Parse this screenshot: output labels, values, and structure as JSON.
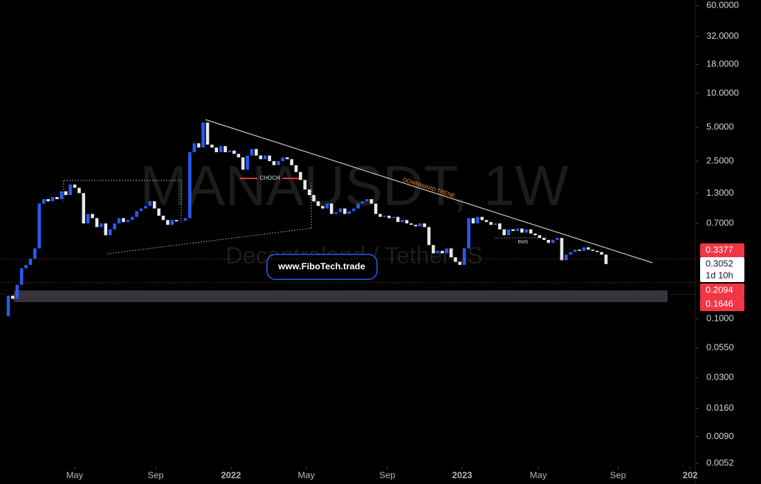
{
  "chart_data": {
    "type": "candlestick",
    "title": "MANAUSDT, 1W",
    "subtitle": "Decentraland / TetherUS",
    "watermark_link": "www.FiboTech.trade",
    "annotations": {
      "choch": "CHOCH",
      "bms": "BMS",
      "trend": "DOWNWARD TRENE"
    },
    "up_color": "#2a5bf0",
    "down_color": "#e8e8e8",
    "log_scale": true,
    "xlim": [
      -1.875,
      155.16
    ],
    "xticks": [
      {
        "value": 15,
        "label": "May"
      },
      {
        "value": 33.3,
        "label": "Sep"
      },
      {
        "value": 50.3,
        "label": "2022"
      },
      {
        "value": 67.3,
        "label": "May"
      },
      {
        "value": 85.6,
        "label": "Sep"
      },
      {
        "value": 102.5,
        "label": "2023"
      },
      {
        "value": 119.7,
        "label": "May"
      },
      {
        "value": 137.7,
        "label": "Sep"
      },
      {
        "value": 154,
        "label": "202"
      }
    ],
    "ylim": [
      0.00486,
      67.2
    ],
    "yticks": [
      {
        "value": 60,
        "label": "60.0000"
      },
      {
        "value": 32,
        "label": "32.0000"
      },
      {
        "value": 18,
        "label": "18.0000"
      },
      {
        "value": 10,
        "label": "10.0000"
      },
      {
        "value": 5,
        "label": "5.0000"
      },
      {
        "value": 2.5,
        "label": "2.5000"
      },
      {
        "value": 1.3,
        "label": "1.3000"
      },
      {
        "value": 0.7,
        "label": "0.7000"
      },
      {
        "value": 0.1,
        "label": "0.1000"
      },
      {
        "value": 0.055,
        "label": "0.0550"
      },
      {
        "value": 0.03,
        "label": "0.0300"
      },
      {
        "value": 0.016,
        "label": "0.0160"
      },
      {
        "value": 0.009,
        "label": "0.0090"
      },
      {
        "value": 0.0052,
        "label": "0.0052"
      }
    ],
    "price_tags": [
      {
        "price": 0.3377,
        "color": "#f23645",
        "text_color": "#ffffff",
        "dotted_line": true
      },
      {
        "price": 0.3052,
        "color": "#ffffff",
        "text_color": "#131722",
        "dotted_line": false,
        "countdown": "1d 10h"
      },
      {
        "price": 0.2094,
        "color": "#f23645",
        "text_color": "#ffffff",
        "dotted_line": true
      },
      {
        "price": 0.1646,
        "color": "#f23645",
        "text_color": "#ffffff",
        "dotted_line": true
      }
    ],
    "open": [
      0.105,
      0.16,
      0.15,
      0.2,
      0.28,
      0.3,
      0.34,
      0.42,
      1.05,
      1.15,
      1.1,
      1.2,
      1.15,
      1.35,
      1.25,
      1.55,
      1.45,
      1.3,
      0.7,
      0.85,
      0.78,
      0.65,
      0.7,
      0.55,
      0.62,
      0.7,
      0.78,
      0.72,
      0.75,
      0.8,
      0.9,
      0.95,
      1.0,
      1.1,
      0.95,
      0.82,
      0.75,
      0.68,
      0.75,
      0.73,
      0.74,
      0.78,
      3.0,
      3.6,
      3.3,
      5.5,
      3.5,
      3.3,
      3.0,
      3.4,
      3.0,
      3.1,
      2.9,
      2.7,
      2.1,
      2.8,
      3.2,
      2.8,
      2.6,
      2.8,
      2.5,
      2.3,
      2.5,
      2.7,
      2.6,
      2.3,
      2.0,
      1.7,
      1.4,
      1.25,
      1.1,
      1.0,
      0.95,
      1.05,
      0.85,
      0.88,
      0.95,
      0.85,
      0.9,
      0.95,
      1.05,
      1.1,
      1.15,
      1.05,
      0.85,
      0.8,
      0.82,
      0.78,
      0.8,
      0.72,
      0.75,
      0.7,
      0.68,
      0.66,
      0.7,
      0.65,
      0.45,
      0.38,
      0.4,
      0.38,
      0.42,
      0.35,
      0.32,
      0.3,
      0.42,
      0.78,
      0.7,
      0.8,
      0.75,
      0.72,
      0.68,
      0.7,
      0.62,
      0.55,
      0.62,
      0.6,
      0.63,
      0.58,
      0.62,
      0.57,
      0.55,
      0.52,
      0.5,
      0.47,
      0.5,
      0.52,
      0.33,
      0.37,
      0.39,
      0.41,
      0.4,
      0.43,
      0.41,
      0.4,
      0.39,
      0.37
    ],
    "close": [
      0.16,
      0.15,
      0.2,
      0.28,
      0.3,
      0.34,
      0.42,
      1.05,
      1.15,
      1.1,
      1.2,
      1.15,
      1.35,
      1.25,
      1.55,
      1.45,
      1.3,
      0.7,
      0.85,
      0.78,
      0.65,
      0.7,
      0.55,
      0.62,
      0.7,
      0.78,
      0.72,
      0.75,
      0.8,
      0.9,
      0.95,
      1.0,
      1.1,
      0.95,
      0.82,
      0.75,
      0.68,
      0.75,
      0.73,
      0.74,
      0.78,
      3.0,
      3.6,
      3.3,
      5.5,
      3.5,
      3.3,
      3.0,
      3.4,
      3.0,
      3.1,
      2.9,
      2.7,
      2.1,
      2.8,
      3.2,
      2.8,
      2.6,
      2.8,
      2.5,
      2.3,
      2.5,
      2.7,
      2.6,
      2.3,
      2.0,
      1.7,
      1.4,
      1.25,
      1.1,
      1.0,
      0.95,
      1.05,
      0.85,
      0.88,
      0.95,
      0.85,
      0.9,
      0.95,
      1.05,
      1.1,
      1.15,
      1.05,
      0.85,
      0.8,
      0.82,
      0.78,
      0.8,
      0.72,
      0.75,
      0.7,
      0.68,
      0.66,
      0.7,
      0.65,
      0.45,
      0.38,
      0.4,
      0.38,
      0.42,
      0.35,
      0.32,
      0.3,
      0.42,
      0.78,
      0.7,
      0.8,
      0.75,
      0.72,
      0.68,
      0.7,
      0.62,
      0.55,
      0.62,
      0.6,
      0.63,
      0.58,
      0.62,
      0.57,
      0.55,
      0.52,
      0.5,
      0.47,
      0.5,
      0.52,
      0.33,
      0.37,
      0.39,
      0.41,
      0.4,
      0.43,
      0.41,
      0.4,
      0.39,
      0.37,
      0.3052
    ]
  }
}
